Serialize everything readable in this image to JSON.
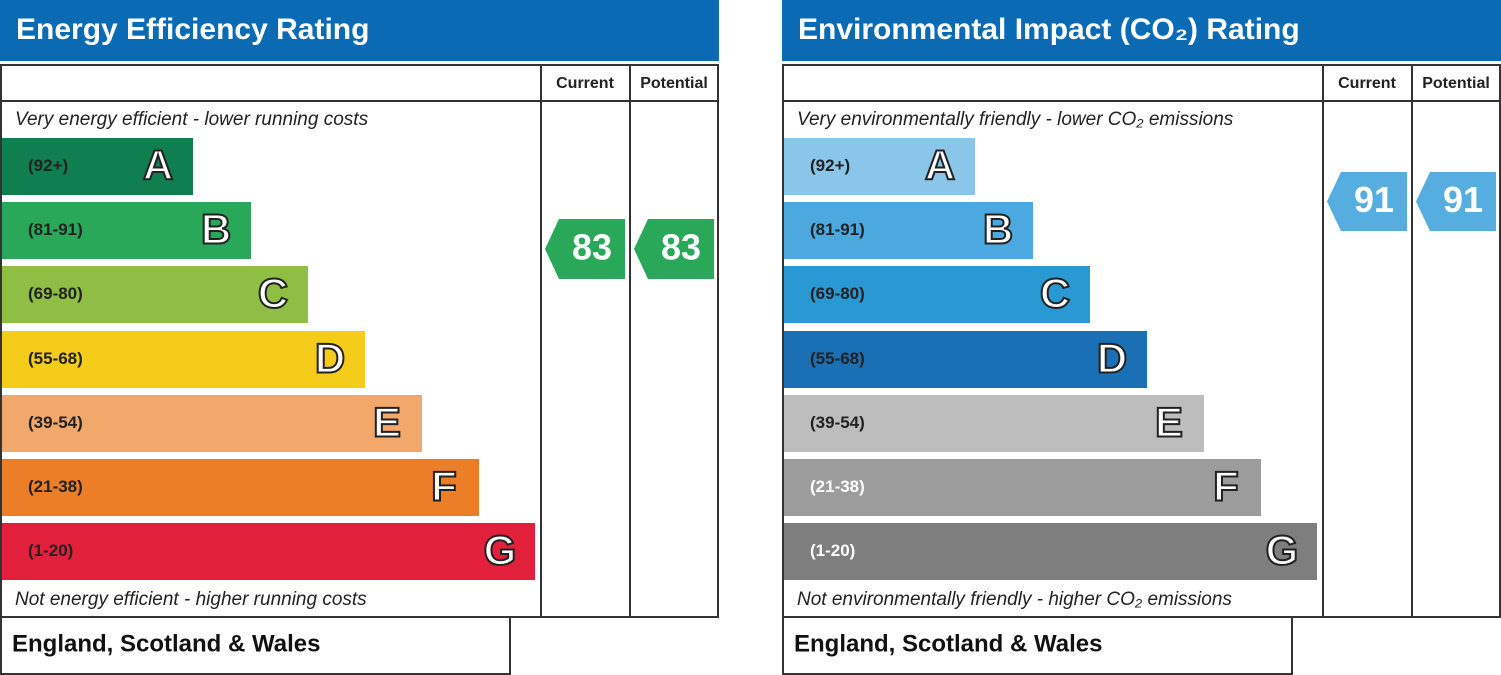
{
  "panels": [
    {
      "title": "Energy Efficiency Rating",
      "headers": {
        "current": "Current",
        "potential": "Potential"
      },
      "top_note": "Very energy efficient - lower running costs",
      "bands": [
        {
          "range": "(92+)",
          "letter": "A",
          "color": "#0f7f4f"
        },
        {
          "range": "(81-91)",
          "letter": "B",
          "color": "#2aa85a"
        },
        {
          "range": "(69-80)",
          "letter": "C",
          "color": "#8fbe45"
        },
        {
          "range": "(55-68)",
          "letter": "D",
          "color": "#f5cc1a"
        },
        {
          "range": "(39-54)",
          "letter": "E",
          "color": "#f2a86a"
        },
        {
          "range": "(21-38)",
          "letter": "F",
          "color": "#ec7e27"
        },
        {
          "range": "(1-20)",
          "letter": "G",
          "color": "#e3203b"
        }
      ],
      "bottom_note": "Not energy efficient - higher running costs",
      "current": {
        "value": 83,
        "color": "#2aa85a"
      },
      "potential": {
        "value": 83,
        "color": "#2aa85a"
      },
      "footer": "England, Scotland & Wales"
    },
    {
      "title": "Environmental Impact (CO₂) Rating",
      "headers": {
        "current": "Current",
        "potential": "Potential"
      },
      "top_note": "Very environmentally friendly - lower CO₂ emissions",
      "bands": [
        {
          "range": "(92+)",
          "letter": "A",
          "color": "#8ac6ea"
        },
        {
          "range": "(81-91)",
          "letter": "B",
          "color": "#4ba9df"
        },
        {
          "range": "(69-80)",
          "letter": "C",
          "color": "#2a99d3"
        },
        {
          "range": "(55-68)",
          "letter": "D",
          "color": "#1b6fb5"
        },
        {
          "range": "(39-54)",
          "letter": "E",
          "color": "#bdbdbd"
        },
        {
          "range": "(21-38)",
          "letter": "F",
          "color": "#9c9c9c"
        },
        {
          "range": "(1-20)",
          "letter": "G",
          "color": "#7e7e7e"
        }
      ],
      "bottom_note": "Not environmentally friendly - higher CO₂ emissions",
      "current": {
        "value": 91,
        "color": "#55ade0"
      },
      "potential": {
        "value": 91,
        "color": "#55ade0"
      },
      "footer": "England, Scotland & Wales"
    }
  ]
}
